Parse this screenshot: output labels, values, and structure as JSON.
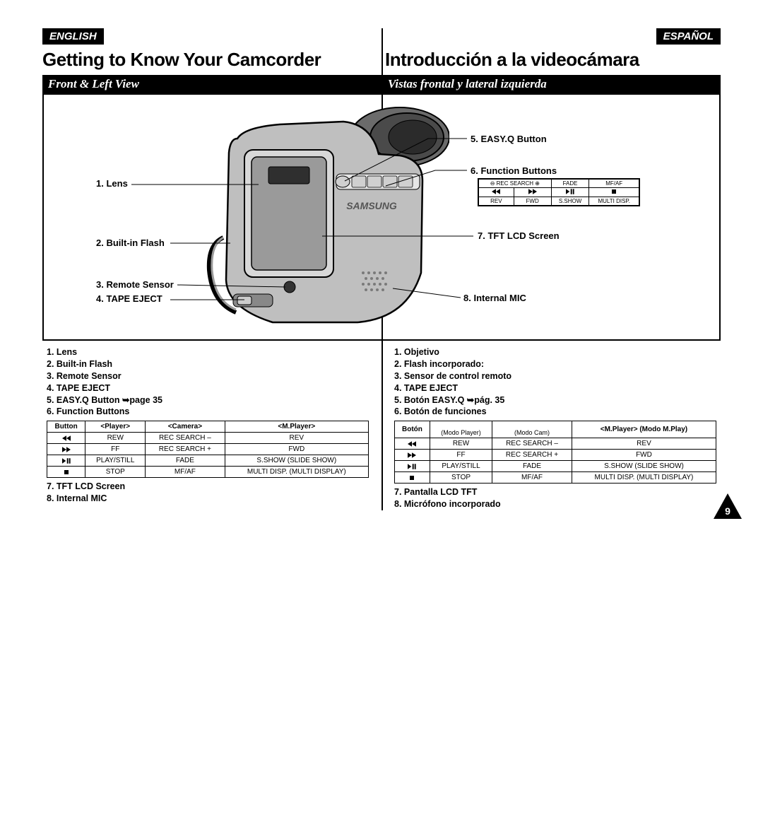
{
  "colors": {
    "ink": "#000000",
    "paper": "#ffffff"
  },
  "page_number": "9",
  "langs": {
    "en": "ENGLISH",
    "es": "ESPAÑOL"
  },
  "titles": {
    "en": "Getting to Know Your Camcorder",
    "es": "Introducción a la videocámara"
  },
  "subtitles": {
    "en": "Front & Left View",
    "es": "Vistas frontal y lateral izquierda"
  },
  "callouts": {
    "left": [
      {
        "n": "1.",
        "t": "Lens"
      },
      {
        "n": "2.",
        "t": "Built-in Flash"
      },
      {
        "n": "3.",
        "t": "Remote Sensor"
      },
      {
        "n": "4.",
        "t": "TAPE EJECT"
      }
    ],
    "right": [
      {
        "n": "5.",
        "t": "EASY.Q Button"
      },
      {
        "n": "6.",
        "t": "Function Buttons"
      },
      {
        "n": "7.",
        "t": "TFT LCD Screen"
      },
      {
        "n": "8.",
        "t": "Internal MIC"
      }
    ]
  },
  "fn_panel": {
    "row1": [
      "⊖ REC SEARCH ⊕",
      "FADE",
      "MF/AF"
    ],
    "row2_icons": [
      "rew",
      "fwd",
      "playpause",
      "stop"
    ],
    "row3": [
      "REV",
      "FWD",
      "S.SHOW",
      "MULTI DISP."
    ]
  },
  "lists": {
    "en_before": [
      "1.  Lens",
      "2.  Built-in Flash",
      "3.  Remote Sensor",
      "4.  TAPE EJECT",
      "5.  EASY.Q Button ➥page 35",
      "6.  Function Buttons"
    ],
    "en_after": [
      "7.  TFT LCD Screen",
      "8.  Internal MIC"
    ],
    "es_before": [
      "1.  Objetivo",
      "2.  Flash incorporado:",
      "3.  Sensor de control remoto",
      "4.  TAPE EJECT",
      "5.  Botón EASY.Q ➥pág. 35",
      "6.  Botón de funciones"
    ],
    "es_after": [
      "7.  Pantalla LCD TFT",
      "8.  Micrófono incorporado"
    ]
  },
  "tables": {
    "en": {
      "headers": [
        "Button",
        "<Player>",
        "<Camera>",
        "<M.Player>"
      ],
      "rows": [
        {
          "sym": "rew",
          "cells": [
            "REW",
            "REC SEARCH –",
            "REV"
          ]
        },
        {
          "sym": "fwd",
          "cells": [
            "FF",
            "REC SEARCH +",
            "FWD"
          ]
        },
        {
          "sym": "playpause",
          "cells": [
            "PLAY/STILL",
            "FADE",
            "S.SHOW (SLIDE SHOW)"
          ]
        },
        {
          "sym": "stop",
          "cells": [
            "STOP",
            "MF/AF",
            "MULTI DISP. (MULTI DISPLAY)"
          ]
        }
      ]
    },
    "es": {
      "headers": [
        "Botón",
        "<Player>\n(Modo Player)",
        "<Camera>\n(Modo Cam)",
        "<M.Player> (Modo M.Play)"
      ],
      "rows": [
        {
          "sym": "rew",
          "cells": [
            "REW",
            "REC SEARCH –",
            "REV"
          ]
        },
        {
          "sym": "fwd",
          "cells": [
            "FF",
            "REC SEARCH +",
            "FWD"
          ]
        },
        {
          "sym": "playpause",
          "cells": [
            "PLAY/STILL",
            "FADE",
            "S.SHOW (SLIDE SHOW)"
          ]
        },
        {
          "sym": "stop",
          "cells": [
            "STOP",
            "MF/AF",
            "MULTI DISP. (MULTI DISPLAY)"
          ]
        }
      ]
    }
  }
}
